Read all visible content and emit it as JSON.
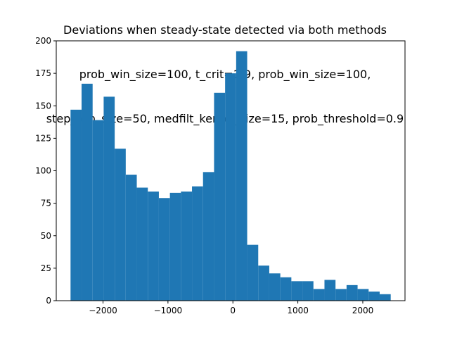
{
  "chart_data": {
    "type": "bar",
    "title_lines": [
      "Deviations when steady-state detected via both methods",
      "prob_win_size=100, t_crit=1.9, prob_win_size=100,",
      "step_win_size=50, medfilt_kernel_size=15, prob_threshold=0.9"
    ],
    "xlabel": "",
    "ylabel": "",
    "bin_edges": [
      -2500,
      -2330,
      -2160,
      -1990,
      -1820,
      -1650,
      -1480,
      -1310,
      -1140,
      -970,
      -800,
      -630,
      -460,
      -290,
      -120,
      50,
      220,
      390,
      560,
      730,
      900,
      1070,
      1240,
      1410,
      1580,
      1750,
      1920,
      2090,
      2260,
      2430
    ],
    "values": [
      147,
      167,
      139,
      157,
      117,
      97,
      87,
      84,
      79,
      83,
      84,
      88,
      99,
      160,
      175,
      192,
      43,
      27,
      21,
      18,
      15,
      15,
      9,
      16,
      9,
      12,
      9,
      7,
      5,
      5
    ],
    "xlim": [
      -2720,
      2650
    ],
    "ylim": [
      0,
      200
    ],
    "xticks": [
      -2000,
      -1000,
      0,
      1000,
      2000
    ],
    "xtick_labels": [
      "−2000",
      "−1000",
      "0",
      "1000",
      "2000"
    ],
    "yticks": [
      0,
      25,
      50,
      75,
      100,
      125,
      150,
      175,
      200
    ],
    "ytick_labels": [
      "0",
      "25",
      "50",
      "75",
      "100",
      "125",
      "150",
      "175",
      "200"
    ],
    "grid": false,
    "bar_color": "#1f77b4"
  }
}
